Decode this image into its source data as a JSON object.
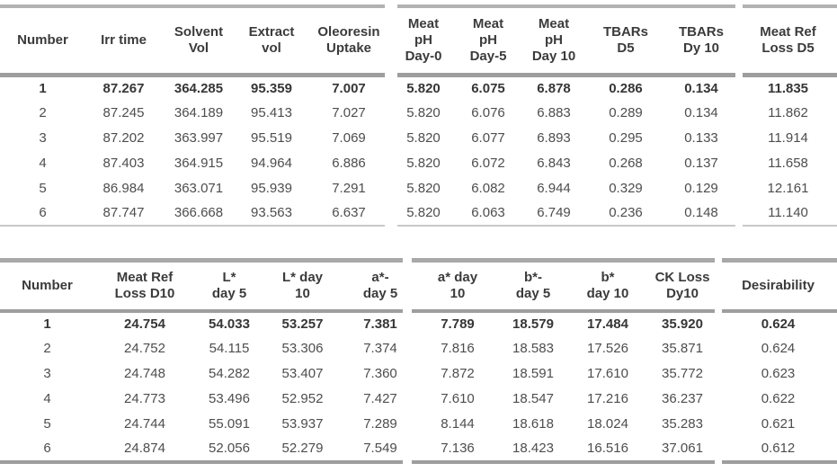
{
  "page": {
    "background_color": "#ffffff",
    "header_text_color": "#3b3b3b",
    "body_text_color": "#4d4d4d",
    "rule_color_strong": "#9e9e9e",
    "rule_color_light": "#c8c8c8"
  },
  "tables": [
    {
      "name": "solutions-table-1",
      "headers": [
        "Number",
        "Irr time",
        "Solvent\nVol",
        "Extract\nvol",
        "Oleoresin\nUptake",
        "Meat\npH\nDay-0",
        "Meat\npH\nDay-5",
        "Meat\npH\nDay 10",
        "TBARs\nD5",
        "TBARs\nDy 10",
        "Meat Ref\nLoss D5"
      ],
      "rows": [
        [
          "1",
          "87.267",
          "364.285",
          "95.359",
          "7.007",
          "5.820",
          "6.075",
          "6.878",
          "0.286",
          "0.134",
          "11.835"
        ],
        [
          "2",
          "87.245",
          "364.189",
          "95.413",
          "7.027",
          "5.820",
          "6.076",
          "6.883",
          "0.289",
          "0.134",
          "11.862"
        ],
        [
          "3",
          "87.202",
          "363.997",
          "95.519",
          "7.069",
          "5.820",
          "6.077",
          "6.893",
          "0.295",
          "0.133",
          "11.914"
        ],
        [
          "4",
          "87.403",
          "364.915",
          "94.964",
          "6.886",
          "5.820",
          "6.072",
          "6.843",
          "0.268",
          "0.137",
          "11.658"
        ],
        [
          "5",
          "86.984",
          "363.071",
          "95.939",
          "7.291",
          "5.820",
          "6.082",
          "6.944",
          "0.329",
          "0.129",
          "12.161"
        ],
        [
          "6",
          "87.747",
          "366.668",
          "93.563",
          "6.637",
          "5.820",
          "6.063",
          "6.749",
          "0.236",
          "0.148",
          "11.140"
        ]
      ]
    },
    {
      "name": "solutions-table-2",
      "headers": [
        "Number",
        "Meat Ref\nLoss D10",
        "L*\nday 5",
        "L* day\n10",
        "a*-\nday 5",
        "a* day\n10",
        "b*-\nday 5",
        "b*\nday 10",
        "CK Loss\nDy10",
        "Desirability"
      ],
      "rows": [
        [
          "1",
          "24.754",
          "54.033",
          "53.257",
          "7.381",
          "7.789",
          "18.579",
          "17.484",
          "35.920",
          "0.624"
        ],
        [
          "2",
          "24.752",
          "54.115",
          "53.306",
          "7.374",
          "7.816",
          "18.583",
          "17.526",
          "35.871",
          "0.624"
        ],
        [
          "3",
          "24.748",
          "54.282",
          "53.407",
          "7.360",
          "7.872",
          "18.591",
          "17.610",
          "35.772",
          "0.623"
        ],
        [
          "4",
          "24.773",
          "53.496",
          "52.952",
          "7.427",
          "7.610",
          "18.547",
          "17.216",
          "36.237",
          "0.622"
        ],
        [
          "5",
          "24.744",
          "55.091",
          "53.937",
          "7.289",
          "8.144",
          "18.618",
          "18.024",
          "35.283",
          "0.621"
        ],
        [
          "6",
          "24.874",
          "52.056",
          "52.279",
          "7.549",
          "7.136",
          "18.423",
          "16.516",
          "37.061",
          "0.612"
        ]
      ]
    }
  ]
}
